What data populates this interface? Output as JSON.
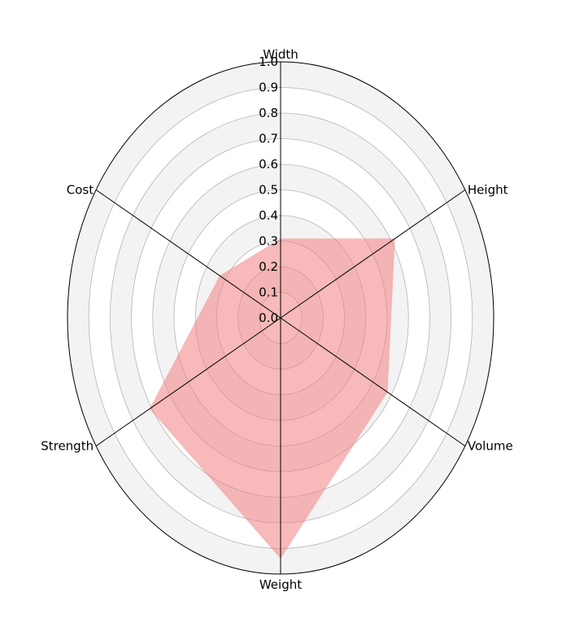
{
  "chart_data": {
    "type": "radar",
    "axes": [
      "Width",
      "Height",
      "Volume",
      "Weight",
      "Strength",
      "Cost"
    ],
    "ticks": [
      "0.0",
      "0.1",
      "0.2",
      "0.3",
      "0.4",
      "0.5",
      "0.6",
      "0.7",
      "0.8",
      "0.9",
      "1.0"
    ],
    "rlim": [
      0,
      1
    ],
    "series": [
      {
        "values": [
          0.31,
          0.62,
          0.58,
          0.94,
          0.71,
          0.33
        ]
      }
    ],
    "colors": {
      "fill": "#f08080",
      "band": "#f3f3f3",
      "grid": "#b4b4b4",
      "axis_line": "#000000"
    },
    "fill_opacity": 0.55
  }
}
